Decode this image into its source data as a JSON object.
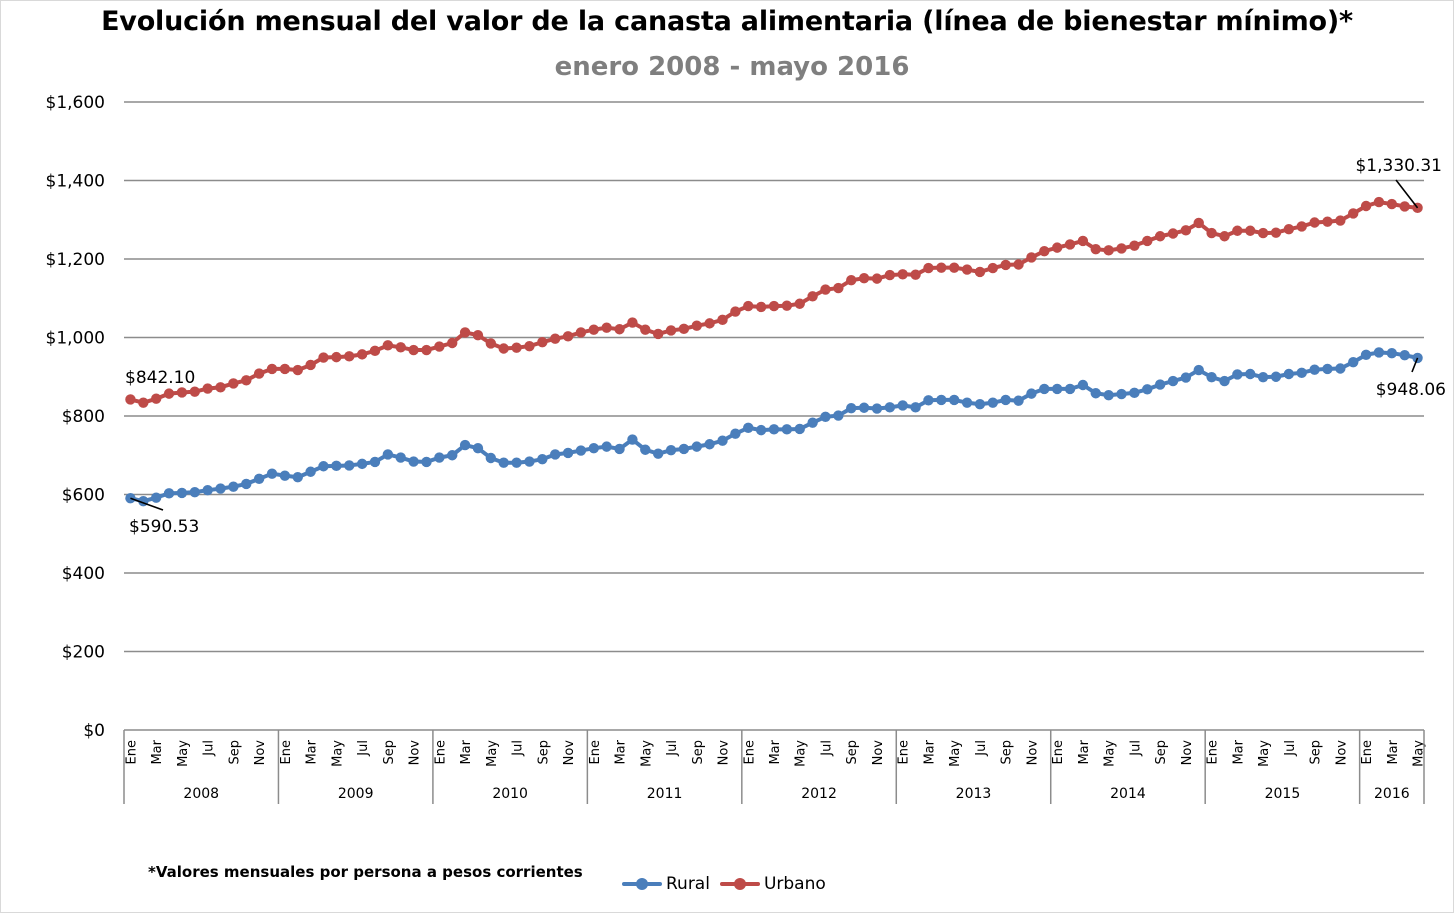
{
  "chart_data": {
    "type": "line",
    "title": "Evolución mensual del valor de la canasta alimentaria (línea de bienestar mínimo)*",
    "subtitle": "enero 2008 - mayo 2016",
    "footnote": "*Valores mensuales por persona a pesos corrientes",
    "ylim": [
      0,
      1600
    ],
    "y_ticks": [
      "$0",
      "$200",
      "$400",
      "$600",
      "$800",
      "$1,000",
      "$1,200",
      "$1,400",
      "$1,600"
    ],
    "y_tick_values": [
      0,
      200,
      400,
      600,
      800,
      1000,
      1200,
      1400,
      1600
    ],
    "grid": true,
    "legend_position": "bottom",
    "month_labels": [
      "Ene",
      "Mar",
      "May",
      "Jul",
      "Sep",
      "Nov"
    ],
    "years": [
      "2008",
      "2009",
      "2010",
      "2011",
      "2012",
      "2013",
      "2014",
      "2015",
      "2016"
    ],
    "last_year_labels": [
      "Ene",
      "Mar",
      "May"
    ],
    "series": [
      {
        "name": "Rural",
        "color": "#4a7ebb",
        "values": [
          590.53,
          583,
          592,
          603,
          604,
          606,
          611,
          615,
          620,
          627,
          640,
          653,
          648,
          644,
          658,
          672,
          673,
          674,
          678,
          683,
          702,
          694,
          684,
          683,
          694,
          700,
          726,
          718,
          693,
          681,
          681,
          684,
          690,
          702,
          706,
          712,
          718,
          722,
          716,
          740,
          714,
          704,
          713,
          716,
          722,
          728,
          737,
          755,
          770,
          764,
          766,
          766,
          767,
          783,
          798,
          801,
          820,
          821,
          819,
          822,
          827,
          822,
          840,
          841,
          841,
          834,
          830,
          834,
          841,
          839,
          857,
          869,
          869,
          869,
          879,
          858,
          853,
          856,
          859,
          868,
          880,
          889,
          898,
          917,
          899,
          889,
          906,
          907,
          899,
          900,
          907,
          910,
          918,
          920,
          921,
          937,
          956,
          962,
          960,
          955,
          948.06
        ]
      },
      {
        "name": "Urbano",
        "color": "#be4b48",
        "values": [
          842.1,
          834,
          844,
          857,
          860,
          862,
          870,
          873,
          883,
          891,
          908,
          920,
          920,
          917,
          930,
          949,
          950,
          952,
          957,
          966,
          980,
          975,
          968,
          968,
          977,
          986,
          1013,
          1006,
          985,
          972,
          974,
          978,
          988,
          997,
          1003,
          1013,
          1020,
          1025,
          1021,
          1038,
          1020,
          1009,
          1018,
          1022,
          1030,
          1036,
          1045,
          1066,
          1080,
          1078,
          1080,
          1081,
          1086,
          1105,
          1122,
          1126,
          1146,
          1151,
          1150,
          1159,
          1161,
          1160,
          1177,
          1178,
          1178,
          1173,
          1167,
          1177,
          1185,
          1186,
          1204,
          1220,
          1229,
          1237,
          1246,
          1225,
          1222,
          1227,
          1234,
          1246,
          1258,
          1265,
          1273,
          1292,
          1266,
          1258,
          1272,
          1272,
          1266,
          1267,
          1276,
          1283,
          1293,
          1295,
          1298,
          1316,
          1335,
          1345,
          1340,
          1334,
          1330.31
        ]
      }
    ],
    "annotations": [
      {
        "text": "$842.10"
      },
      {
        "text": "$590.53"
      },
      {
        "text": "$1,330.31"
      },
      {
        "text": "$948.06"
      }
    ]
  }
}
